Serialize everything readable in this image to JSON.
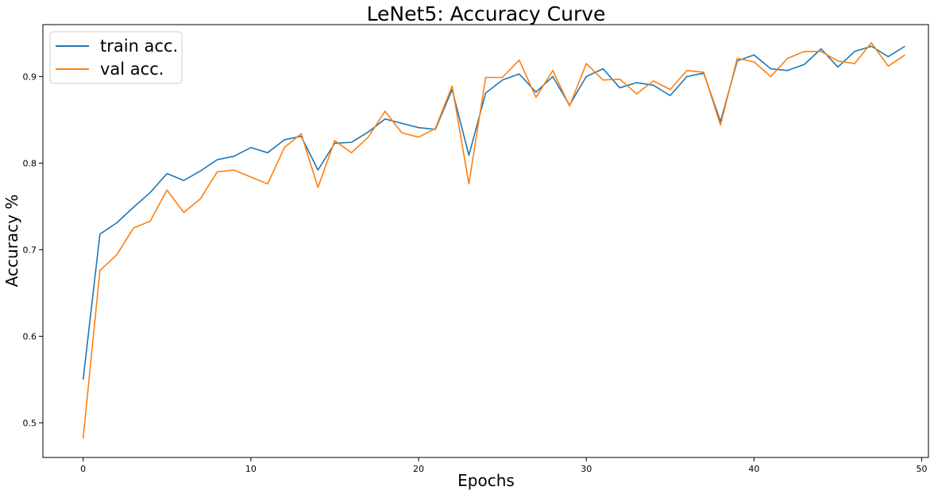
{
  "chart_data": {
    "type": "line",
    "title": "LeNet5: Accuracy Curve",
    "xlabel": "Epochs",
    "ylabel": "Accuracy %",
    "xlim": [
      -2.4,
      50.4
    ],
    "ylim": [
      0.46,
      0.96
    ],
    "xticks": [
      0,
      10,
      20,
      30,
      40,
      50
    ],
    "yticks": [
      0.5,
      0.6,
      0.7,
      0.8,
      0.9
    ],
    "grid": false,
    "legend_position": "top-left",
    "x": [
      0,
      1,
      2,
      3,
      4,
      5,
      6,
      7,
      8,
      9,
      10,
      11,
      12,
      13,
      14,
      15,
      16,
      17,
      18,
      19,
      20,
      21,
      22,
      23,
      24,
      25,
      26,
      27,
      28,
      29,
      30,
      31,
      32,
      33,
      34,
      35,
      36,
      37,
      38,
      39,
      40,
      41,
      42,
      43,
      44,
      45,
      46,
      47,
      48,
      49
    ],
    "series": [
      {
        "name": "train acc.",
        "color": "#1f77b4",
        "values": [
          0.55,
          0.718,
          0.731,
          0.749,
          0.766,
          0.788,
          0.78,
          0.791,
          0.804,
          0.808,
          0.818,
          0.812,
          0.827,
          0.831,
          0.792,
          0.823,
          0.824,
          0.836,
          0.851,
          0.846,
          0.841,
          0.839,
          0.885,
          0.809,
          0.881,
          0.896,
          0.903,
          0.882,
          0.9,
          0.867,
          0.9,
          0.909,
          0.887,
          0.893,
          0.89,
          0.878,
          0.9,
          0.904,
          0.848,
          0.918,
          0.925,
          0.909,
          0.907,
          0.914,
          0.932,
          0.911,
          0.929,
          0.935,
          0.923,
          0.935
        ]
      },
      {
        "name": "val acc.",
        "color": "#ff7f0e",
        "values": [
          0.482,
          0.676,
          0.694,
          0.725,
          0.733,
          0.769,
          0.743,
          0.759,
          0.79,
          0.792,
          0.784,
          0.776,
          0.818,
          0.834,
          0.772,
          0.826,
          0.812,
          0.83,
          0.86,
          0.835,
          0.83,
          0.84,
          0.889,
          0.776,
          0.899,
          0.899,
          0.919,
          0.876,
          0.907,
          0.866,
          0.915,
          0.896,
          0.897,
          0.88,
          0.895,
          0.885,
          0.907,
          0.905,
          0.844,
          0.921,
          0.917,
          0.9,
          0.921,
          0.929,
          0.929,
          0.918,
          0.915,
          0.939,
          0.912,
          0.925
        ]
      }
    ]
  }
}
